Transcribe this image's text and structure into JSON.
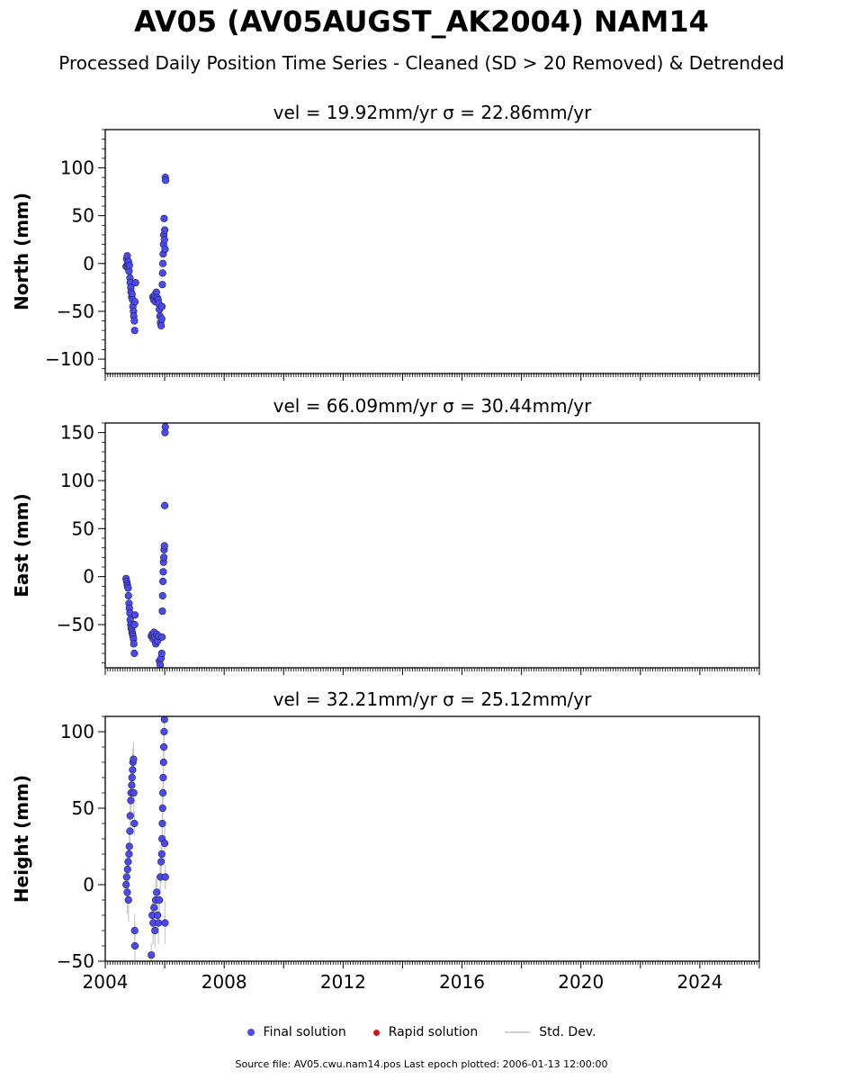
{
  "title": "AV05 (AV05AUGST_AK2004) NAM14",
  "subtitle": "Processed Daily Position Time Series - Cleaned (SD > 20 Removed) & Detrended",
  "colors": {
    "final": "#4a4af0",
    "rapid": "#e01010",
    "std": "#c8c8c8",
    "edge": "#222244"
  },
  "legend": {
    "final": "Final solution",
    "rapid": "Rapid solution",
    "std": "Std. Dev."
  },
  "footer": "Source file: AV05.cwu.nam14.pos  Last epoch plotted: 2006-01-13 12:00:00",
  "chart_data": [
    {
      "type": "scatter",
      "title": "vel = 19.92mm/yr   σ = 22.86mm/yr",
      "ylabel": "North (mm)",
      "xlim": [
        2004.0,
        2026.0
      ],
      "ylim": [
        -115,
        140
      ],
      "yticks": [
        -100,
        -50,
        0,
        50,
        100
      ],
      "xticks": [
        2004,
        2008,
        2012,
        2016,
        2020,
        2024
      ],
      "series": [
        {
          "x": [
            2004.7,
            2004.72,
            2004.74,
            2004.75,
            2004.77,
            2004.78,
            2004.8,
            2004.81,
            2004.83,
            2004.84,
            2004.86,
            2004.87,
            2004.89,
            2004.9,
            2004.92,
            2004.93,
            2004.95,
            2004.96,
            2004.98,
            2004.99,
            2005.0,
            2005.02
          ],
          "y": [
            -3,
            5,
            8,
            0,
            -5,
            2,
            -8,
            -2,
            -15,
            -20,
            -25,
            -30,
            -35,
            -32,
            -38,
            -45,
            -50,
            -55,
            -60,
            -70,
            -40,
            -20
          ]
        },
        {
          "x": [
            2005.6,
            2005.63,
            2005.66,
            2005.69,
            2005.72,
            2005.75,
            2005.78,
            2005.8,
            2005.82,
            2005.84,
            2005.86,
            2005.88,
            2005.9,
            2005.91,
            2005.92,
            2005.93,
            2005.94,
            2005.95,
            2005.96,
            2005.97,
            2005.98,
            2005.99,
            2006.0,
            2006.01,
            2006.02,
            2006.03
          ],
          "y": [
            -35,
            -38,
            -33,
            -40,
            -30,
            -36,
            -38,
            -42,
            -48,
            -55,
            -62,
            -65,
            -58,
            -45,
            -22,
            -10,
            0,
            10,
            20,
            30,
            47,
            25,
            35,
            15,
            90,
            87
          ]
        }
      ]
    },
    {
      "type": "scatter",
      "title": "vel = 66.09mm/yr   σ = 30.44mm/yr",
      "ylabel": "East (mm)",
      "xlim": [
        2004.0,
        2026.0
      ],
      "ylim": [
        -95,
        160
      ],
      "yticks": [
        -50,
        0,
        50,
        100,
        150
      ],
      "xticks": [
        2004,
        2008,
        2012,
        2016,
        2020,
        2024
      ],
      "series": [
        {
          "x": [
            2004.7,
            2004.72,
            2004.74,
            2004.75,
            2004.77,
            2004.78,
            2004.8,
            2004.81,
            2004.83,
            2004.84,
            2004.86,
            2004.87,
            2004.89,
            2004.9,
            2004.92,
            2004.93,
            2004.95,
            2004.96,
            2004.98,
            2004.99,
            2005.0
          ],
          "y": [
            -2,
            -5,
            -8,
            -10,
            -12,
            -20,
            -28,
            -33,
            -38,
            -45,
            -50,
            -53,
            -55,
            -58,
            -60,
            -62,
            -65,
            -70,
            -80,
            -50,
            -40
          ]
        },
        {
          "x": [
            2005.55,
            2005.58,
            2005.61,
            2005.64,
            2005.67,
            2005.7,
            2005.73,
            2005.76,
            2005.79,
            2005.82,
            2005.85,
            2005.88,
            2005.9,
            2005.91,
            2005.92,
            2005.93,
            2005.94,
            2005.95,
            2005.96,
            2005.97,
            2005.98,
            2005.99,
            2006.0,
            2006.01,
            2006.02
          ],
          "y": [
            -62,
            -60,
            -65,
            -58,
            -63,
            -70,
            -60,
            -67,
            -62,
            -88,
            -92,
            -85,
            -80,
            -63,
            -36,
            -20,
            -5,
            5,
            15,
            20,
            28,
            32,
            74,
            150,
            156
          ]
        }
      ]
    },
    {
      "type": "scatter",
      "title": "vel = 32.21mm/yr   σ = 25.12mm/yr",
      "ylabel": "Height (mm)",
      "xlim": [
        2004.0,
        2026.0
      ],
      "ylim": [
        -50,
        110
      ],
      "yticks": [
        -50,
        0,
        50,
        100
      ],
      "xticks": [
        2004,
        2008,
        2012,
        2016,
        2020,
        2024
      ],
      "series": [
        {
          "x": [
            2004.7,
            2004.72,
            2004.74,
            2004.75,
            2004.77,
            2004.78,
            2004.8,
            2004.81,
            2004.83,
            2004.84,
            2004.86,
            2004.87,
            2004.89,
            2004.9,
            2004.92,
            2004.93,
            2004.95,
            2004.96,
            2004.98,
            2004.99,
            2005.0
          ],
          "y": [
            0,
            5,
            -5,
            10,
            15,
            -10,
            20,
            25,
            35,
            45,
            55,
            60,
            65,
            70,
            75,
            80,
            82,
            60,
            40,
            -30,
            -40
          ]
        },
        {
          "x": [
            2005.55,
            2005.58,
            2005.61,
            2005.64,
            2005.67,
            2005.7,
            2005.73,
            2005.76,
            2005.79,
            2005.82,
            2005.85,
            2005.88,
            2005.9,
            2005.91,
            2005.92,
            2005.93,
            2005.94,
            2005.95,
            2005.96,
            2005.97,
            2005.98,
            2005.99,
            2006.0,
            2006.01,
            2006.02
          ],
          "y": [
            -46,
            -20,
            -25,
            -15,
            -30,
            -10,
            -5,
            -20,
            -25,
            -10,
            5,
            15,
            20,
            30,
            40,
            50,
            60,
            70,
            80,
            90,
            100,
            108,
            27,
            -25,
            5
          ]
        }
      ]
    }
  ]
}
